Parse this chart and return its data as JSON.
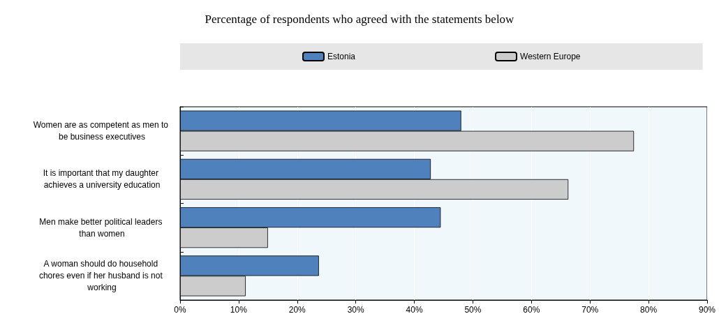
{
  "chart_data": {
    "type": "bar",
    "orientation": "horizontal",
    "title": "Percentage of respondents who agreed with the statements below",
    "categories": [
      "Women are as competent as men to be business executives",
      "It is important that my daughter achieves a university education",
      "Men make better political leaders than women",
      "A woman should do household chores even if her husband is not working"
    ],
    "series": [
      {
        "name": "Estonia",
        "color": "#4f81bd",
        "values": [
          48.0,
          42.8,
          44.5,
          23.7
        ]
      },
      {
        "name": "Western Europe",
        "color": "#cccccc",
        "values": [
          77.5,
          66.3,
          15.0,
          11.2
        ]
      }
    ],
    "xlim": [
      0,
      90
    ],
    "xticks": [
      {
        "value": 0,
        "label": "0%"
      },
      {
        "value": 10,
        "label": "10%"
      },
      {
        "value": 20,
        "label": "20%"
      },
      {
        "value": 30,
        "label": "30%"
      },
      {
        "value": 40,
        "label": "40%"
      },
      {
        "value": 50,
        "label": "50%"
      },
      {
        "value": 60,
        "label": "60%"
      },
      {
        "value": 70,
        "label": "70%"
      },
      {
        "value": 80,
        "label": "80%"
      },
      {
        "value": 90,
        "label": "90%"
      }
    ],
    "grid": "x",
    "legend": "top"
  }
}
